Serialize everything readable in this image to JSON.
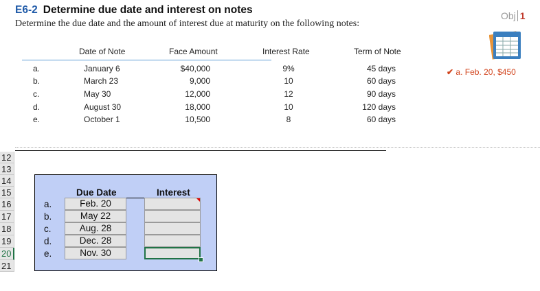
{
  "exercise": {
    "number": "E6-2",
    "title": "Determine due date and interest on notes",
    "instruction": "Determine the due date and the amount of interest due at maturity on the following notes:",
    "obj_label": "Obj",
    "obj_number": "1",
    "check_answer": "a. Feb. 20, $450",
    "check_icon": "checkmark-icon"
  },
  "notes_table": {
    "headers": [
      "Date of Note",
      "Face Amount",
      "Interest Rate",
      "Term of Note"
    ],
    "rows": [
      {
        "letter": "a.",
        "date": "January 6",
        "face": "$40,000",
        "rate": "9%",
        "term": "45 days"
      },
      {
        "letter": "b.",
        "date": "March 23",
        "face": "9,000",
        "rate": "10",
        "term": "60 days"
      },
      {
        "letter": "c.",
        "date": "May 30",
        "face": "12,000",
        "rate": "12",
        "term": "90 days"
      },
      {
        "letter": "d.",
        "date": "August 30",
        "face": "18,000",
        "rate": "10",
        "term": "120 days"
      },
      {
        "letter": "e.",
        "date": "October 1",
        "face": "10,500",
        "rate": "8",
        "term": "60 days"
      }
    ]
  },
  "spreadsheet": {
    "row_numbers": [
      "12",
      "13",
      "14",
      "15",
      "16",
      "17",
      "18",
      "19",
      "20",
      "21"
    ],
    "selected_row": "20",
    "headers": {
      "due_date": "Due Date",
      "interest": "Interest"
    },
    "rows": [
      {
        "letter": "a.",
        "due_date": "Feb. 20",
        "interest": ""
      },
      {
        "letter": "b.",
        "due_date": "May 22",
        "interest": ""
      },
      {
        "letter": "c.",
        "due_date": "Aug. 28",
        "interest": ""
      },
      {
        "letter": "d.",
        "due_date": "Dec. 28",
        "interest": ""
      },
      {
        "letter": "e.",
        "due_date": "Nov. 30",
        "interest": ""
      }
    ],
    "colors": {
      "panel": "#c0cff6",
      "selection": "#217346",
      "comment_marker": "#e00000"
    }
  }
}
